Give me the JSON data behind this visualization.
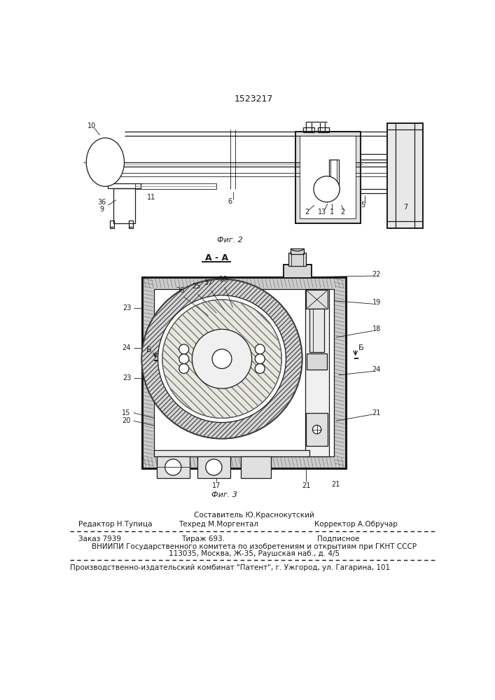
{
  "title_number": "1523217",
  "fig2_label": "Фиг. 2",
  "fig3_label": "Фиг. 3",
  "section_label": "А - А",
  "footer_line1_top": "Составитель Ю.Краснокутский",
  "footer_line1_left": "Редактор Н.Тупица",
  "footer_line1_center": "Техред М.Моргентал",
  "footer_line1_right": "Корректор А.Обручар",
  "footer_line2a": "Заказ 7939",
  "footer_line2b": "Тираж 693.",
  "footer_line2c": "Подписное",
  "footer_line3": "ВНИИПИ Государственного комитета по изобретениям и открытиям при ГКНТ СССР",
  "footer_line4": "113035, Москва, Ж-35, Раушская наб., д. 4/5",
  "footer_line5": "Производственно-издательский комбинат \"Патент\", г. Ужгород, ул. Гагарина, 101",
  "bg_color": "#ffffff",
  "line_color": "#1a1a1a"
}
